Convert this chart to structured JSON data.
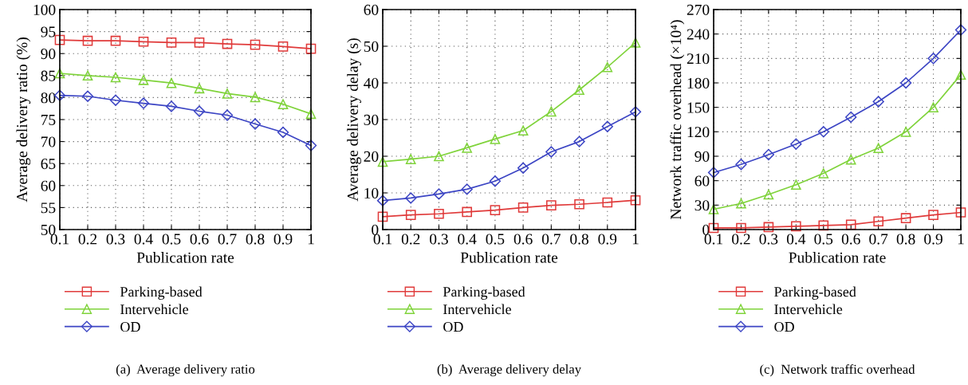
{
  "chart_data": [
    {
      "type": "line",
      "xlabel": "Publication rate",
      "ylabel": "Average delivery ratio (%)",
      "x": [
        0.1,
        0.2,
        0.3,
        0.4,
        0.5,
        0.6,
        0.7,
        0.8,
        0.9,
        1
      ],
      "xlim": [
        0.1,
        1
      ],
      "xticks": [
        0.1,
        0.2,
        0.3,
        0.4,
        0.5,
        0.6,
        0.7,
        0.8,
        0.9,
        1
      ],
      "ylim": [
        50,
        100
      ],
      "yticks": [
        50,
        55,
        60,
        65,
        70,
        75,
        80,
        85,
        90,
        95,
        100
      ],
      "grid": true,
      "legend": "bottom",
      "line_style": "solid",
      "annotations": [
        "(a)  Average delivery ratio"
      ],
      "series": [
        {
          "name": "Parking-based",
          "color": "#e03a3a",
          "marker": "square",
          "values": [
            93.1,
            92.9,
            92.9,
            92.7,
            92.5,
            92.5,
            92.2,
            92.0,
            91.6,
            91.1
          ]
        },
        {
          "name": "Intervehicle",
          "color": "#7fd33a",
          "marker": "triangle",
          "values": [
            85.5,
            85.0,
            84.6,
            84.0,
            83.3,
            82.1,
            80.9,
            80.1,
            78.5,
            76.3
          ]
        },
        {
          "name": "OD",
          "color": "#3c45c4",
          "marker": "diamond",
          "values": [
            80.5,
            80.3,
            79.4,
            78.7,
            78.0,
            76.9,
            76.0,
            74.0,
            72.1,
            69.1
          ]
        }
      ]
    },
    {
      "type": "line",
      "xlabel": "Publication rate",
      "ylabel": "Average delivery delay (s)",
      "x": [
        0.1,
        0.2,
        0.3,
        0.4,
        0.5,
        0.6,
        0.7,
        0.8,
        0.9,
        1
      ],
      "xlim": [
        0.1,
        1
      ],
      "xticks": [
        0.1,
        0.2,
        0.3,
        0.4,
        0.5,
        0.6,
        0.7,
        0.8,
        0.9,
        1
      ],
      "ylim": [
        0,
        60
      ],
      "yticks": [
        0,
        10,
        20,
        30,
        40,
        50,
        60
      ],
      "grid": true,
      "legend": "bottom",
      "line_style": "solid",
      "annotations": [
        "(b)  Average delivery delay"
      ],
      "series": [
        {
          "name": "Parking-based",
          "color": "#e03a3a",
          "marker": "square",
          "values": [
            3.5,
            4.0,
            4.3,
            4.8,
            5.3,
            6.0,
            6.6,
            6.9,
            7.4,
            8.0
          ]
        },
        {
          "name": "Intervehicle",
          "color": "#7fd33a",
          "marker": "triangle",
          "values": [
            18.5,
            19.2,
            20.0,
            22.3,
            24.7,
            27.0,
            32.2,
            38.1,
            44.3,
            51.0
          ]
        },
        {
          "name": "OD",
          "color": "#3c45c4",
          "marker": "diamond",
          "values": [
            7.9,
            8.6,
            9.7,
            11.0,
            13.2,
            16.8,
            21.2,
            24.0,
            28.1,
            32.1
          ]
        }
      ]
    },
    {
      "type": "line",
      "xlabel": "Publication rate",
      "ylabel": "Network traffic overhead (×10⁴)",
      "x": [
        0.1,
        0.2,
        0.3,
        0.4,
        0.5,
        0.6,
        0.7,
        0.8,
        0.9,
        1
      ],
      "xlim": [
        0.1,
        1
      ],
      "xticks": [
        0.1,
        0.2,
        0.3,
        0.4,
        0.5,
        0.6,
        0.7,
        0.8,
        0.9,
        1
      ],
      "ylim": [
        0,
        270
      ],
      "yticks": [
        0,
        30,
        60,
        90,
        120,
        150,
        180,
        210,
        240,
        270
      ],
      "grid": true,
      "legend": "bottom",
      "line_style": "solid",
      "annotations": [
        "(c)  Network traffic overhead"
      ],
      "series": [
        {
          "name": "Parking-based",
          "color": "#e03a3a",
          "marker": "square",
          "values": [
            2,
            2,
            3,
            4,
            5,
            6,
            10,
            14,
            18,
            21
          ]
        },
        {
          "name": "Intervehicle",
          "color": "#7fd33a",
          "marker": "triangle",
          "values": [
            25,
            32,
            43,
            55,
            69,
            86,
            100,
            120,
            150,
            190
          ]
        },
        {
          "name": "OD",
          "color": "#3c45c4",
          "marker": "diamond",
          "values": [
            70,
            80,
            92,
            105,
            120,
            138,
            157,
            180,
            210,
            245
          ]
        }
      ]
    }
  ]
}
